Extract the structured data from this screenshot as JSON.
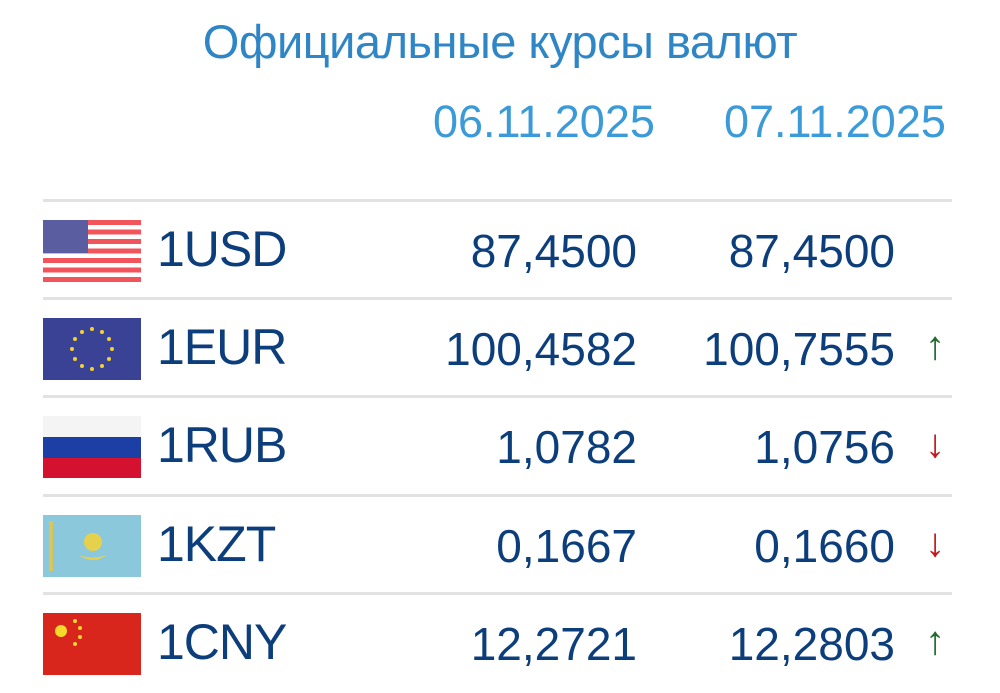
{
  "title": "Официальные курсы валют",
  "dates": [
    "06.11.2025",
    "07.11.2025"
  ],
  "colors": {
    "title": "#2f86c6",
    "text": "#0d3e7c",
    "up": "#1e6b2d",
    "down": "#c4161c"
  },
  "rows": [
    {
      "code": "1USD",
      "flag": "us-flag",
      "v1": "87,4500",
      "v2": "87,4500",
      "trend": "",
      "arrow": ""
    },
    {
      "code": "1EUR",
      "flag": "eu-flag",
      "v1": "100,4582",
      "v2": "100,7555",
      "trend": "up",
      "arrow": "↑"
    },
    {
      "code": "1RUB",
      "flag": "ru-flag",
      "v1": "1,0782",
      "v2": "1,0756",
      "trend": "down",
      "arrow": "↓"
    },
    {
      "code": "1KZT",
      "flag": "kz-flag",
      "v1": "0,1667",
      "v2": "0,1660",
      "trend": "down",
      "arrow": "↓"
    },
    {
      "code": "1CNY",
      "flag": "cn-flag",
      "v1": "12,2721",
      "v2": "12,2803",
      "trend": "up",
      "arrow": "↑"
    }
  ]
}
